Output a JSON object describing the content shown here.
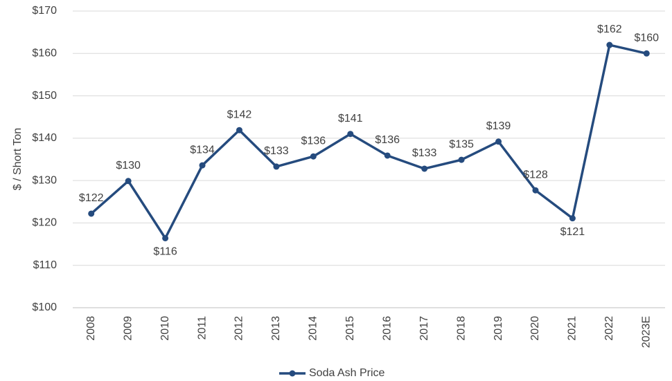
{
  "chart_data": {
    "type": "line",
    "y_label": "$ / Short Ton",
    "categories": [
      "2008",
      "2009",
      "2010",
      "2011",
      "2012",
      "2013",
      "2014",
      "2015",
      "2016",
      "2017",
      "2018",
      "2019",
      "2020",
      "2021",
      "2022",
      "2023E"
    ],
    "series": [
      {
        "name": "Soda Ash Price",
        "color": "#254b7e",
        "values": [
          122.2,
          129.9,
          116.4,
          133.6,
          141.9,
          133.3,
          135.7,
          141.0,
          135.9,
          132.8,
          134.9,
          139.2,
          127.7,
          121.1,
          162.0,
          160.0
        ],
        "value_labels": [
          "$122",
          "$130",
          "$116",
          "$134",
          "$142",
          "$133",
          "$136",
          "$141",
          "$136",
          "$133",
          "$135",
          "$139",
          "$128",
          "$121",
          "$162",
          "$160"
        ]
      }
    ],
    "ylim": [
      100,
      170
    ],
    "yticks": [
      {
        "value": 100,
        "label": "$100"
      },
      {
        "value": 110,
        "label": "$110"
      },
      {
        "value": 120,
        "label": "$120"
      },
      {
        "value": 130,
        "label": "$130"
      },
      {
        "value": 140,
        "label": "$140"
      },
      {
        "value": 150,
        "label": "$150"
      },
      {
        "value": 160,
        "label": "$160"
      },
      {
        "value": 170,
        "label": "$170"
      }
    ],
    "grid": true,
    "legend": "bottom"
  }
}
